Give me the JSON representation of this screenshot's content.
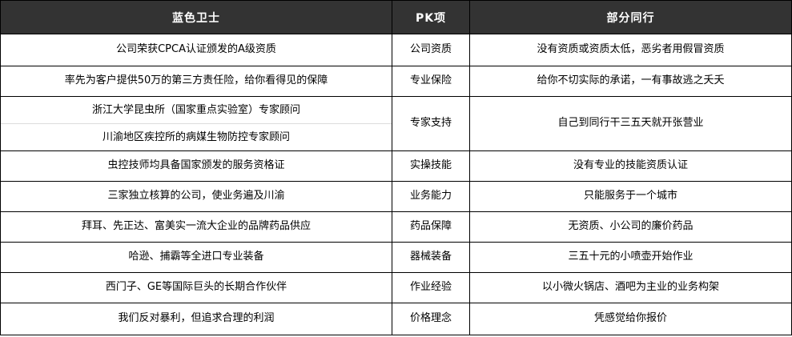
{
  "table": {
    "header": {
      "us_title": "蓝色卫士",
      "item_title": "PK项",
      "them_title": "部分同行"
    },
    "rows": [
      {
        "us": "公司荣获CPCA认证颁发的A级资质",
        "item": "公司资质",
        "them": "没有资质或资质太低，恶劣者用假冒资质"
      },
      {
        "us": "率先为客户提供50万的第三方责任险，给你看得见的保障",
        "item": "专业保险",
        "them": "给你不切实际的承诺，一有事故逃之夭夭"
      },
      {
        "us_line1": "浙江大学昆虫所（国家重点实验室）专家顾问",
        "us_line2": "川渝地区疾控所的病媒生物防控专家顾问",
        "item": "专家支持",
        "them": "自己到同行干三五天就开张营业"
      },
      {
        "us": "虫控技师均具备国家颁发的服务资格证",
        "item": "实操技能",
        "them": "没有专业的技能资质认证"
      },
      {
        "us": "三家独立核算的公司，使业务遍及川渝",
        "item": "业务能力",
        "them": "只能服务于一个城市"
      },
      {
        "us": "拜耳、先正达、富美实一流大企业的品牌药品供应",
        "item": "药品保障",
        "them": "无资质、小公司的廉价药品"
      },
      {
        "us": "哈逊、捕霸等全进口专业装备",
        "item": "器械装备",
        "them": "三五十元的小喷壶开始作业"
      },
      {
        "us": "西门子、GE等国际巨头的长期合作伙伴",
        "item": "作业经验",
        "them": "以小微火锅店、酒吧为主业的业务构架"
      },
      {
        "us": "我们反对暴利，但追求合理的利润",
        "item": "价格理念",
        "them": "凭感觉给你报价"
      }
    ]
  },
  "colors": {
    "header_bg": "#333333",
    "header_text": "#ffffff",
    "border": "#000000",
    "body_text": "#000000",
    "sub_divider": "#dcdcdc"
  }
}
